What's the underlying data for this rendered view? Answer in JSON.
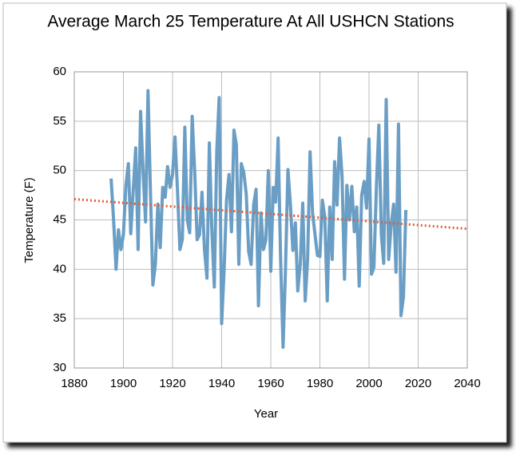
{
  "chart_data": {
    "type": "line",
    "title": "Average March 25 Temperature At All USHCN Stations",
    "x_label": "Year",
    "y_label": "Temperature  (F)",
    "xlim": [
      1880,
      2040
    ],
    "xticks": [
      1880,
      1900,
      1920,
      1940,
      1960,
      1980,
      2000,
      2020,
      2040
    ],
    "ylim": [
      30,
      60
    ],
    "yticks": [
      30,
      35,
      40,
      45,
      50,
      55,
      60
    ],
    "grid": true,
    "series": [
      {
        "color": "#6a9ec5",
        "style": "solid",
        "x": [
          1895,
          1896,
          1897,
          1898,
          1899,
          1900,
          1901,
          1902,
          1903,
          1904,
          1905,
          1906,
          1907,
          1908,
          1909,
          1910,
          1911,
          1912,
          1913,
          1914,
          1915,
          1916,
          1917,
          1918,
          1919,
          1920,
          1921,
          1922,
          1923,
          1924,
          1925,
          1926,
          1927,
          1928,
          1929,
          1930,
          1931,
          1932,
          1933,
          1934,
          1935,
          1936,
          1937,
          1938,
          1939,
          1940,
          1941,
          1942,
          1943,
          1944,
          1945,
          1946,
          1947,
          1948,
          1949,
          1950,
          1951,
          1952,
          1953,
          1954,
          1955,
          1956,
          1957,
          1958,
          1959,
          1960,
          1961,
          1962,
          1963,
          1964,
          1965,
          1966,
          1967,
          1968,
          1969,
          1970,
          1971,
          1972,
          1973,
          1974,
          1975,
          1976,
          1977,
          1978,
          1979,
          1980,
          1981,
          1982,
          1983,
          1984,
          1985,
          1986,
          1987,
          1988,
          1989,
          1990,
          1991,
          1992,
          1993,
          1994,
          1995,
          1996,
          1997,
          1998,
          1999,
          2000,
          2001,
          2002,
          2003,
          2004,
          2005,
          2006,
          2007,
          2008,
          2009,
          2010,
          2011,
          2012,
          2013,
          2014,
          2015
        ],
        "values": [
          49.2,
          45,
          40,
          44,
          42,
          43.5,
          48.5,
          50.7,
          43.6,
          48,
          52.3,
          42,
          56,
          50,
          44.8,
          58.1,
          48,
          38.4,
          40.5,
          46.6,
          42.2,
          48.3,
          47.3,
          50.4,
          48.3,
          49.6,
          53.4,
          48,
          42,
          43,
          54.4,
          45,
          43.7,
          55.5,
          50,
          43,
          43.5,
          47.8,
          42,
          39.1,
          52.8,
          44,
          38.2,
          52,
          57.4,
          34.5,
          40,
          47,
          49.6,
          43.8,
          54.1,
          52.6,
          40.5,
          50.7,
          49.8,
          47.6,
          41.8,
          40.5,
          46.5,
          48.1,
          36.3,
          45.7,
          42,
          43,
          50,
          39.8,
          48.3,
          46.8,
          53.3,
          41,
          32.1,
          40,
          50.1,
          46.5,
          41.9,
          44.7,
          37.8,
          40.5,
          46.7,
          36.8,
          41,
          51.9,
          45.7,
          43.5,
          41.4,
          41.3,
          47,
          45.3,
          36.8,
          46.3,
          41,
          50.9,
          46.5,
          53.3,
          49.5,
          39,
          48.5,
          45,
          48.4,
          43.8,
          46.3,
          38.3,
          47.5,
          48.9,
          46.2,
          53.2,
          39.5,
          40.2,
          48.2,
          54.6,
          43.5,
          40.6,
          57.2,
          41,
          44.5,
          46.6,
          39.7,
          54.7,
          35.3,
          37.2,
          46
        ]
      },
      {
        "color": "#e0603a",
        "style": "dotted",
        "x": [
          1880,
          2040
        ],
        "values": [
          47.1,
          44.1
        ]
      }
    ]
  }
}
